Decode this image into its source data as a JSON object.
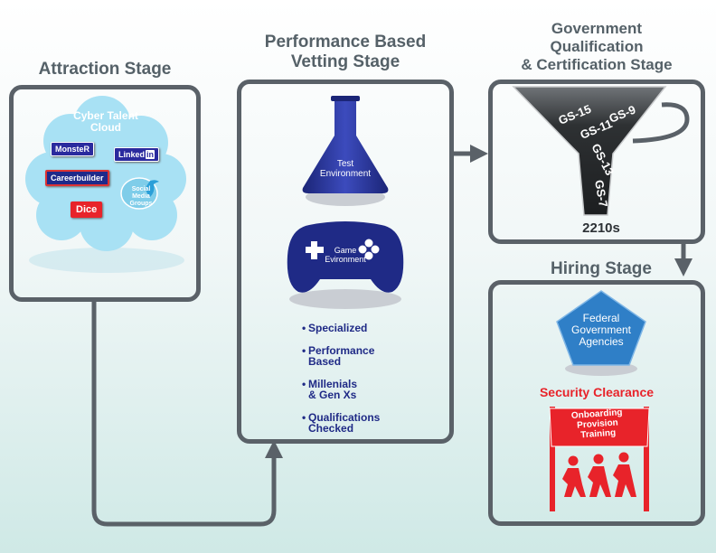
{
  "stages": {
    "attraction": {
      "title": "Attraction Stage"
    },
    "vetting": {
      "title_line1": "Performance Based",
      "title_line2": "Vetting Stage"
    },
    "government": {
      "title_line1": "Government",
      "title_line2": "Qualification",
      "title_line3": "& Certification Stage"
    },
    "hiring": {
      "title": "Hiring Stage"
    }
  },
  "cloud": {
    "title_line1": "Cyber Talent",
    "title_line2": "Cloud",
    "logos": {
      "monster": "MonsteR",
      "linkedin_text": "Linked",
      "linkedin_in": "in",
      "careerbuilder": "Careerbuilder",
      "dice": "Dice",
      "social_line1": "Social",
      "social_line2": "Media",
      "social_line3": "Groups"
    }
  },
  "vetting": {
    "test_line1": "Test",
    "test_line2": "Environment",
    "game_line1": "Game",
    "game_line2": "Evironment",
    "bullets": [
      {
        "line1": "Specialized",
        "line2": ""
      },
      {
        "line1": "Performance",
        "line2": "Based"
      },
      {
        "line1": "Millenials",
        "line2": "& Gen Xs"
      },
      {
        "line1": "Qualifications",
        "line2": "Checked"
      }
    ]
  },
  "funnel": {
    "grades": [
      "GS-15",
      "GS-9",
      "GS-11",
      "GS-13",
      "GS-7"
    ],
    "series": "2210s"
  },
  "hiring": {
    "agency_line1": "Federal",
    "agency_line2": "Government",
    "agency_line3": "Agencies",
    "security": "Security Clearance",
    "sign_line1": "Onboarding",
    "sign_line2": "Provision",
    "sign_line3": "Training"
  },
  "colors": {
    "frame": "#5a6168",
    "stage_title": "#556168",
    "navy": "#1f2a86",
    "red": "#e8232a",
    "agency_blue": "#2f7fc7"
  }
}
